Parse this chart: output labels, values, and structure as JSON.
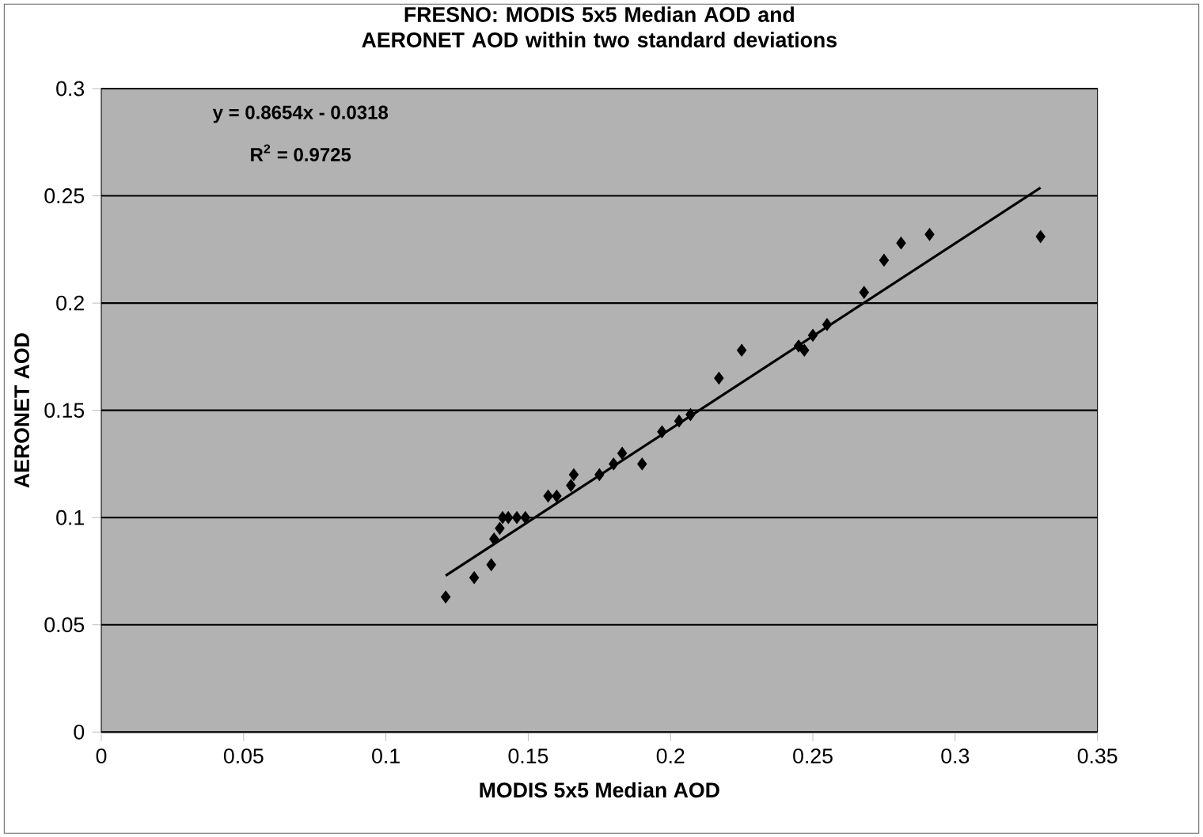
{
  "chart_data": {
    "type": "scatter",
    "title": "FRESNO:  MODIS 5x5 Median AOD and AERONET AOD within two standard deviations",
    "xlabel": "MODIS 5x5 Median AOD",
    "ylabel": "AERONET AOD",
    "annotations": [
      "y = 0.8654x - 0.0318",
      "R$^{2}$ = 0.9725"
    ],
    "series": [
      {
        "color": "#000000",
        "marker": "diamond",
        "x": [
          0.121,
          0.131,
          0.137,
          0.138,
          0.14,
          0.141,
          0.143,
          0.146,
          0.149,
          0.157,
          0.16,
          0.165,
          0.166,
          0.175,
          0.18,
          0.183,
          0.19,
          0.197,
          0.203,
          0.207,
          0.217,
          0.225,
          0.245,
          0.247,
          0.25,
          0.255,
          0.268,
          0.275,
          0.281,
          0.291,
          0.33
        ],
        "values": [
          0.063,
          0.072,
          0.078,
          0.09,
          0.095,
          0.1,
          0.1,
          0.1,
          0.1,
          0.11,
          0.11,
          0.115,
          0.12,
          0.12,
          0.125,
          0.13,
          0.125,
          0.14,
          0.145,
          0.148,
          0.165,
          0.178,
          0.18,
          0.178,
          0.185,
          0.19,
          0.205,
          0.22,
          0.228,
          0.232,
          0.231
        ]
      },
      {
        "type": "line",
        "color": "#000000",
        "marker": "none",
        "x": [
          0.121,
          0.33
        ],
        "values": [
          0.0729,
          0.2538
        ]
      }
    ],
    "xlim": [
      0,
      0.35
    ],
    "xticks": [
      0,
      0.05,
      0.1,
      0.15,
      0.2,
      0.25,
      0.3,
      0.35
    ],
    "ylim": [
      0,
      0.3
    ],
    "yticks": [
      0,
      0.05,
      0.1,
      0.15,
      0.2,
      0.25,
      0.3
    ],
    "grid": "y"
  }
}
